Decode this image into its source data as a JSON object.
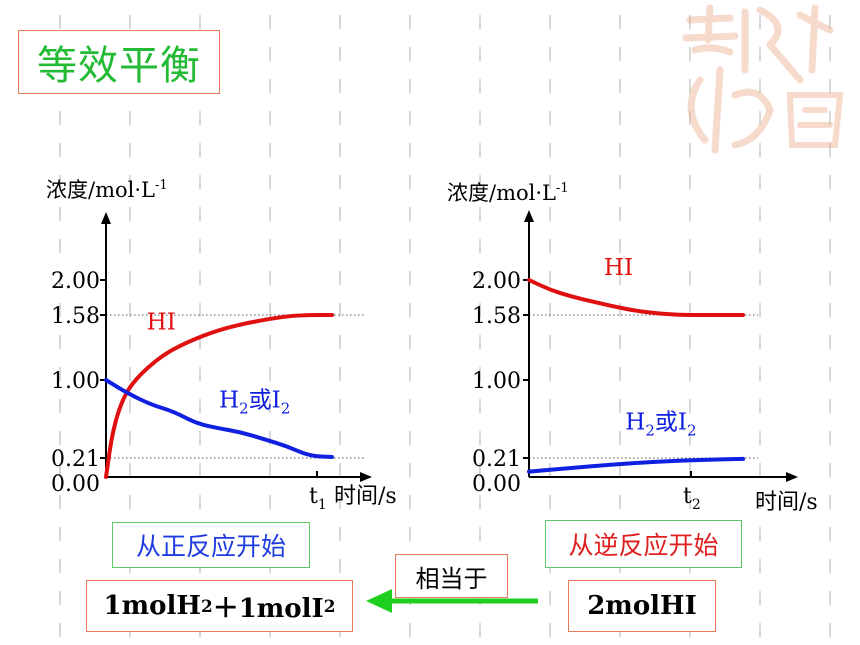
{
  "title": "等效平衡",
  "chart_data": [
    {
      "type": "line",
      "title": "",
      "ylabel_text": "浓度/mol·L",
      "ylabel_sup": "-1",
      "xlabel": "时间/s",
      "t_label_base": "t",
      "t_label_sub": "1",
      "y_ticks": [
        "2.00",
        "1.58",
        "1.00",
        "0.21",
        "0.00"
      ],
      "ylim": [
        0,
        2.4
      ],
      "dotted_levels": [
        1.58,
        0.21
      ],
      "series": [
        {
          "name": "HI",
          "color": "#e01010",
          "x": [
            0,
            0.03,
            0.08,
            0.15,
            0.25,
            0.35,
            0.5,
            0.65,
            0.8,
            0.9,
            1.0
          ],
          "y": [
            0.0,
            0.5,
            0.85,
            1.05,
            1.22,
            1.33,
            1.45,
            1.52,
            1.57,
            1.58,
            1.58
          ]
        },
        {
          "name_base": "H",
          "name_sub": "2",
          "name_mid": "或I",
          "name_sub2": "2",
          "color": "#1020e0",
          "x": [
            0,
            0.1,
            0.2,
            0.3,
            0.4,
            0.5,
            0.6,
            0.7,
            0.8,
            0.9,
            1.0
          ],
          "y": [
            1.0,
            0.86,
            0.75,
            0.68,
            0.56,
            0.51,
            0.47,
            0.4,
            0.33,
            0.23,
            0.22
          ]
        }
      ],
      "annotations": [
        {
          "text": "HI",
          "x": 0.18,
          "y": 1.45,
          "color": "#e01010"
        },
        {
          "text_base": "H",
          "text_sub": "2",
          "text_mid": "或I",
          "text_sub2": "2",
          "x": 0.5,
          "y": 0.72,
          "color": "#1020e0"
        }
      ]
    },
    {
      "type": "line",
      "title": "",
      "ylabel_text": "浓度/mol·L",
      "ylabel_sup": "-1",
      "xlabel": "时间/s",
      "t_label_base": "t",
      "t_label_sub": "2",
      "y_ticks": [
        "2.00",
        "1.58",
        "1.00",
        "0.21",
        "0.00"
      ],
      "ylim": [
        0,
        2.4
      ],
      "dotted_levels": [
        1.58,
        0.21
      ],
      "series": [
        {
          "name": "HI",
          "color": "#e01010",
          "x": [
            0,
            0.1,
            0.2,
            0.3,
            0.4,
            0.5,
            0.6,
            0.7,
            0.8,
            0.9,
            1.0
          ],
          "y": [
            2.0,
            1.88,
            1.8,
            1.74,
            1.68,
            1.63,
            1.6,
            1.58,
            1.58,
            1.58,
            1.58
          ]
        },
        {
          "name_base": "H",
          "name_sub": "2",
          "name_mid": "或I",
          "name_sub2": "2",
          "color": "#1020e0",
          "x": [
            0,
            0.2,
            0.4,
            0.6,
            0.8,
            1.0
          ],
          "y": [
            0.06,
            0.1,
            0.14,
            0.17,
            0.19,
            0.2
          ]
        }
      ],
      "annotations": [
        {
          "text": "HI",
          "x": 0.35,
          "y": 2.05,
          "color": "#e01010"
        },
        {
          "text_base": "H",
          "text_sub": "2",
          "text_mid": "或I",
          "text_sub2": "2",
          "x": 0.45,
          "y": 0.5,
          "color": "#1020e0"
        }
      ]
    }
  ],
  "forward_label": "从正反应开始",
  "reverse_label": "从逆反应开始",
  "equivalent_label": "相当于",
  "reactants": {
    "p1": "1molH",
    "s1": "2",
    "p2": "＋1molI",
    "s2": "2"
  },
  "product": "2molHI",
  "colors": {
    "hi_red": "#e01010",
    "h2_blue": "#1020e0",
    "arrow_green": "#1fcf1f",
    "box_red": "#e87a5a",
    "box_green": "#5ec86a",
    "title_green": "#22bb33"
  },
  "icons": {
    "arrow": "left-arrow-icon",
    "seal": "seal-watermark-icon"
  }
}
